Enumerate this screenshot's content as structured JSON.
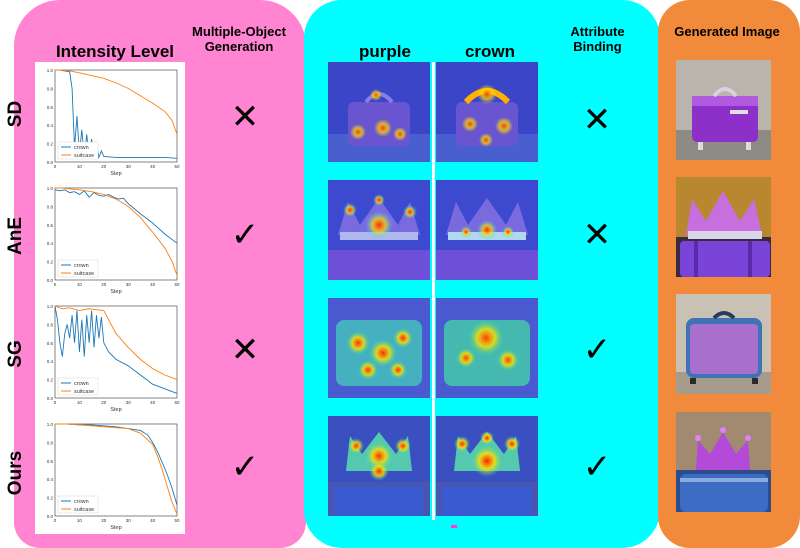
{
  "headers": {
    "intensity": "Intensity Level",
    "multi_object": "Multiple-Object Generation",
    "purple": "purple",
    "crown": "crown",
    "attribute_binding": "Attribute Binding",
    "generated": "Generated Image"
  },
  "colors": {
    "pink_panel": "#ff84d2",
    "cyan_panel": "#00ffff",
    "orange_panel": "#f28a3c",
    "crown_line": "#1f77b4",
    "suitcase_line": "#ff7f0e"
  },
  "rows": [
    {
      "label": "SD",
      "multi_object": "✕",
      "attribute_binding": "✕"
    },
    {
      "label": "AnE",
      "multi_object": "✓",
      "attribute_binding": "✕"
    },
    {
      "label": "SG",
      "multi_object": "✕",
      "attribute_binding": "✓"
    },
    {
      "label": "Ours",
      "multi_object": "✓",
      "attribute_binding": "✓"
    }
  ],
  "chart_data": [
    {
      "type": "line",
      "xlabel": "Step",
      "xlim": [
        0,
        50
      ],
      "ylim": [
        0,
        1.0
      ],
      "xticks": [
        "0",
        "10",
        "20",
        "30",
        "40",
        "50"
      ],
      "yticks": [
        "0.0",
        "0.2",
        "0.4",
        "0.6",
        "0.8",
        "1.0"
      ],
      "legend": "lower-left",
      "series": [
        {
          "name": "crown",
          "color": "#1f77b4",
          "x": [
            0,
            2,
            4,
            6,
            7,
            8,
            9,
            10,
            11,
            12,
            13,
            14,
            15,
            16,
            17,
            18,
            19,
            20,
            25,
            30,
            35,
            40,
            45,
            50
          ],
          "y": [
            1.0,
            1.0,
            0.99,
            0.98,
            0.8,
            0.15,
            0.5,
            0.1,
            0.35,
            0.05,
            0.3,
            0.05,
            0.25,
            0.05,
            0.2,
            0.05,
            0.12,
            0.06,
            0.05,
            0.05,
            0.05,
            0.05,
            0.05,
            0.04
          ]
        },
        {
          "name": "suitcase",
          "color": "#ff7f0e",
          "x": [
            0,
            3,
            6,
            10,
            15,
            20,
            25,
            30,
            35,
            40,
            45,
            48,
            50
          ],
          "y": [
            1.0,
            1.0,
            0.99,
            0.97,
            0.94,
            0.91,
            0.86,
            0.8,
            0.72,
            0.64,
            0.55,
            0.45,
            0.3
          ]
        }
      ]
    },
    {
      "type": "line",
      "xlabel": "Step",
      "xlim": [
        0,
        50
      ],
      "ylim": [
        0,
        1.0
      ],
      "xticks": [
        "0",
        "10",
        "20",
        "30",
        "40",
        "50"
      ],
      "yticks": [
        "0.0",
        "0.2",
        "0.4",
        "0.6",
        "0.8",
        "1.0"
      ],
      "legend": "lower-left",
      "series": [
        {
          "name": "crown",
          "color": "#1f77b4",
          "x": [
            0,
            2,
            4,
            6,
            8,
            10,
            12,
            14,
            16,
            18,
            20,
            22,
            24,
            26,
            28,
            30,
            35,
            40,
            45,
            50
          ],
          "y": [
            0.98,
            0.97,
            0.98,
            0.95,
            0.96,
            0.93,
            0.97,
            0.9,
            0.95,
            0.92,
            0.91,
            0.93,
            0.9,
            0.88,
            0.89,
            0.83,
            0.72,
            0.62,
            0.5,
            0.4
          ]
        },
        {
          "name": "suitcase",
          "color": "#ff7f0e",
          "x": [
            0,
            3,
            6,
            10,
            15,
            20,
            25,
            30,
            35,
            40,
            45,
            48,
            50
          ],
          "y": [
            1.0,
            1.0,
            0.99,
            0.98,
            0.96,
            0.93,
            0.88,
            0.8,
            0.68,
            0.52,
            0.35,
            0.2,
            0.05
          ]
        }
      ]
    },
    {
      "type": "line",
      "xlabel": "Step",
      "xlim": [
        0,
        50
      ],
      "ylim": [
        0,
        1.0
      ],
      "xticks": [
        "0",
        "10",
        "20",
        "30",
        "40",
        "50"
      ],
      "yticks": [
        "0.0",
        "0.2",
        "0.4",
        "0.6",
        "0.8",
        "1.0"
      ],
      "legend": "lower-left",
      "series": [
        {
          "name": "crown",
          "color": "#1f77b4",
          "x": [
            0,
            1,
            2,
            3,
            4,
            5,
            6,
            7,
            8,
            9,
            10,
            11,
            12,
            13,
            14,
            15,
            16,
            17,
            18,
            19,
            20,
            22,
            25,
            30,
            35,
            40,
            45,
            50
          ],
          "y": [
            1.0,
            0.85,
            0.6,
            0.45,
            0.7,
            0.8,
            0.65,
            0.9,
            0.6,
            0.95,
            0.5,
            0.85,
            0.45,
            0.9,
            0.6,
            0.95,
            0.55,
            0.9,
            0.65,
            0.88,
            0.6,
            0.5,
            0.42,
            0.35,
            0.25,
            0.15,
            0.1,
            0.05
          ]
        },
        {
          "name": "suitcase",
          "color": "#ff7f0e",
          "x": [
            0,
            3,
            6,
            10,
            14,
            17,
            20,
            22,
            25,
            30,
            35,
            40,
            45,
            50
          ],
          "y": [
            1.0,
            0.97,
            0.98,
            0.95,
            0.97,
            0.96,
            0.95,
            0.85,
            0.7,
            0.55,
            0.42,
            0.32,
            0.25,
            0.2
          ]
        }
      ]
    },
    {
      "type": "line",
      "xlabel": "Step",
      "xlim": [
        0,
        50
      ],
      "ylim": [
        0,
        1.0
      ],
      "xticks": [
        "0",
        "10",
        "20",
        "30",
        "40",
        "50"
      ],
      "yticks": [
        "0.0",
        "0.2",
        "0.4",
        "0.6",
        "0.8",
        "1.0"
      ],
      "legend": "lower-left",
      "series": [
        {
          "name": "crown",
          "color": "#1f77b4",
          "x": [
            0,
            5,
            10,
            15,
            20,
            25,
            30,
            35,
            38,
            40,
            42,
            44,
            46,
            48,
            50
          ],
          "y": [
            1.0,
            1.0,
            0.99,
            0.99,
            0.98,
            0.97,
            0.95,
            0.93,
            0.88,
            0.8,
            0.7,
            0.58,
            0.45,
            0.3,
            0.12
          ]
        },
        {
          "name": "suitcase",
          "color": "#ff7f0e",
          "x": [
            0,
            5,
            10,
            15,
            20,
            25,
            30,
            35,
            40,
            42,
            44,
            46,
            48,
            50
          ],
          "y": [
            1.0,
            1.0,
            0.99,
            0.98,
            0.97,
            0.96,
            0.95,
            0.9,
            0.78,
            0.65,
            0.5,
            0.32,
            0.15,
            0.02
          ]
        }
      ]
    }
  ]
}
